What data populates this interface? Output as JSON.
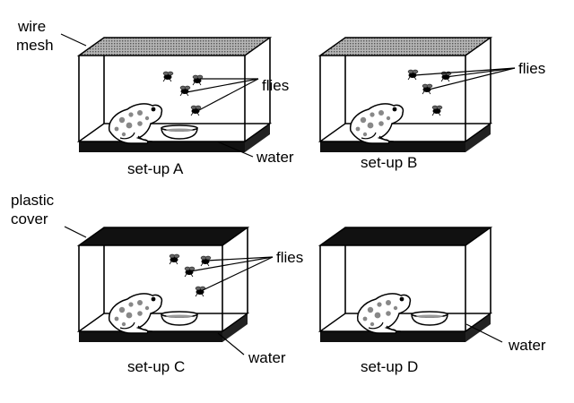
{
  "labels": {
    "wire_mesh_line1": "wire",
    "wire_mesh_line2": "mesh",
    "plastic_cover_line1": "plastic",
    "plastic_cover_line2": "cover",
    "flies": "flies",
    "water": "water"
  },
  "setups": [
    {
      "id": "A",
      "caption": "set-up A",
      "lid": "wire mesh",
      "has_flies": true,
      "has_water": true
    },
    {
      "id": "B",
      "caption": "set-up B",
      "lid": "wire mesh",
      "has_flies": true,
      "has_water": false
    },
    {
      "id": "C",
      "caption": "set-up C",
      "lid": "plastic cover",
      "has_flies": true,
      "has_water": true
    },
    {
      "id": "D",
      "caption": "set-up D",
      "lid": "plastic cover",
      "has_flies": false,
      "has_water": true
    }
  ],
  "colors": {
    "ink": "#000000",
    "mesh_fill": "#9a9a9a",
    "cover_fill": "#111111",
    "background": "#ffffff"
  }
}
